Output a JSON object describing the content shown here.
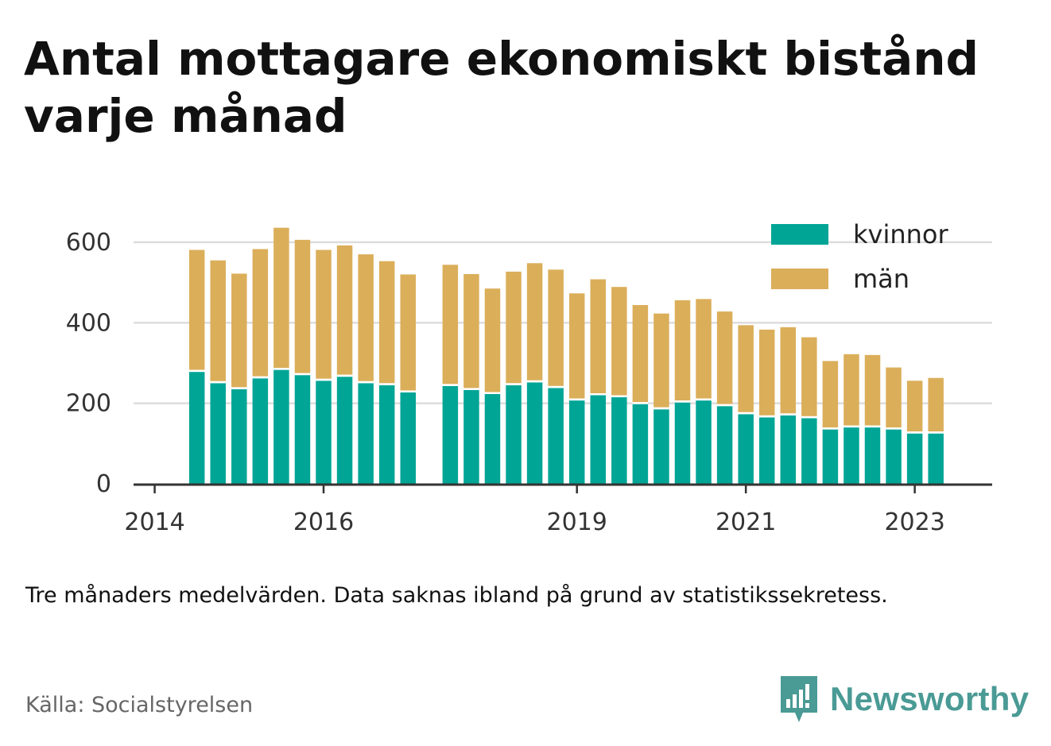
{
  "title": "Antal mottagare ekonomiskt bistånd varje månad",
  "note": "Tre månaders medelvärden. Data saknas ibland på grund av statistikssekretess.",
  "source": "Källa: Socialstyrelsen",
  "brand": {
    "name": "Newsworthy",
    "color": "#4a9a95",
    "logo_icon": "bar-chart-speech-bubble-icon"
  },
  "colors": {
    "kvinnor": "#00a596",
    "man": "#dbae5a",
    "grid": "#dddddd",
    "axis": "#333333"
  },
  "chart_data": {
    "type": "bar",
    "stacked": true,
    "title": "Antal mottagare ekonomiskt bistånd varje månad",
    "xlabel": "",
    "ylabel": "",
    "ylim": [
      0,
      660
    ],
    "yticks": [
      0,
      200,
      400,
      600
    ],
    "xlim": [
      "2013-10",
      "2023-12"
    ],
    "xticks": [
      "2014",
      "2016",
      "2019",
      "2021",
      "2023"
    ],
    "grid": true,
    "legend_position": "top-right",
    "x": [
      "2014-07",
      "2014-10",
      "2015-01",
      "2015-04",
      "2015-07",
      "2015-10",
      "2016-01",
      "2016-04",
      "2016-07",
      "2016-10",
      "2017-01",
      "2017-07",
      "2017-10",
      "2018-01",
      "2018-04",
      "2018-07",
      "2018-10",
      "2019-01",
      "2019-04",
      "2019-07",
      "2019-10",
      "2020-01",
      "2020-04",
      "2020-07",
      "2020-10",
      "2021-01",
      "2021-04",
      "2021-07",
      "2021-10",
      "2022-01",
      "2022-04",
      "2022-07",
      "2022-10",
      "2023-01",
      "2023-04"
    ],
    "series": [
      {
        "name": "kvinnor",
        "color": "#00a596",
        "values": [
          278,
          250,
          235,
          262,
          283,
          270,
          256,
          266,
          250,
          245,
          227,
          243,
          233,
          223,
          245,
          252,
          238,
          207,
          220,
          215,
          198,
          185,
          202,
          207,
          193,
          173,
          165,
          170,
          163,
          135,
          140,
          140,
          135,
          125,
          125
        ]
      },
      {
        "name": "män",
        "color": "#dbae5a",
        "values": [
          303,
          305,
          287,
          321,
          353,
          336,
          325,
          326,
          320,
          308,
          293,
          301,
          288,
          262,
          282,
          296,
          294,
          266,
          288,
          274,
          246,
          238,
          254,
          252,
          235,
          221,
          218,
          219,
          201,
          170,
          182,
          180,
          154,
          131,
          138
        ]
      }
    ]
  }
}
